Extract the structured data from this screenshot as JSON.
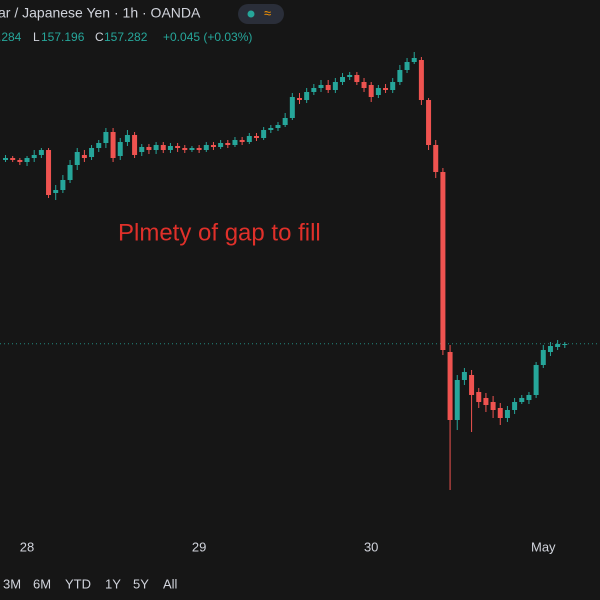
{
  "header": {
    "title": "ar / Japanese Yen · 1h · OANDA",
    "high": ".284",
    "low_label": "L",
    "low": 157.196,
    "close_label": "C",
    "close": 157.282,
    "change": "+0.045 (+0.03%)"
  },
  "chart_data": {
    "type": "candlestick",
    "annotation": "Plmety of gap to fill",
    "up_color": "#26a69a",
    "down_color": "#ef5350",
    "x": [
      -3,
      -2,
      -1,
      0,
      1,
      2,
      3,
      4,
      5,
      6,
      7,
      8,
      9,
      10,
      11,
      12,
      13,
      14,
      15,
      16,
      17,
      18,
      19,
      20,
      21,
      22,
      23,
      24,
      25,
      26,
      27,
      28,
      29,
      30,
      31,
      32,
      33,
      34,
      35,
      36,
      37,
      38,
      39,
      40,
      41,
      42,
      43,
      44,
      45,
      46,
      47,
      48,
      49,
      50,
      51,
      52,
      53,
      54,
      55,
      56,
      57,
      58,
      59,
      60,
      61,
      62,
      63,
      64,
      65,
      66,
      67,
      68,
      69,
      70,
      71,
      72,
      73,
      74,
      75
    ],
    "open": [
      159.12,
      159.14,
      159.12,
      159.1,
      159.14,
      159.17,
      159.22,
      158.79,
      158.82,
      158.92,
      159.07,
      159.17,
      159.15,
      159.24,
      159.29,
      159.4,
      159.16,
      159.3,
      159.37,
      159.2,
      159.25,
      159.22,
      159.27,
      159.22,
      159.26,
      159.24,
      159.22,
      159.24,
      159.22,
      159.27,
      159.25,
      159.29,
      159.27,
      159.32,
      159.3,
      159.36,
      159.34,
      159.42,
      159.44,
      159.47,
      159.54,
      159.74,
      159.72,
      159.8,
      159.84,
      159.87,
      159.82,
      159.9,
      159.95,
      159.97,
      159.9,
      159.87,
      159.77,
      159.84,
      159.82,
      159.9,
      160.02,
      160.1,
      160.12,
      159.72,
      159.27,
      159.0,
      157.2,
      156.52,
      156.92,
      156.97,
      156.8,
      156.74,
      156.7,
      156.64,
      156.54,
      156.62,
      156.7,
      156.72,
      156.77,
      157.07,
      157.2,
      157.25,
      157.27
    ],
    "high": [
      159.17,
      159.16,
      159.14,
      159.16,
      159.22,
      159.24,
      159.24,
      158.87,
      158.97,
      159.12,
      159.24,
      159.22,
      159.27,
      159.32,
      159.44,
      159.44,
      159.34,
      159.42,
      159.4,
      159.28,
      159.28,
      159.3,
      159.3,
      159.29,
      159.29,
      159.27,
      159.26,
      159.27,
      159.3,
      159.3,
      159.32,
      159.32,
      159.35,
      159.35,
      159.39,
      159.39,
      159.45,
      159.47,
      159.5,
      159.59,
      159.79,
      159.79,
      159.84,
      159.88,
      159.92,
      159.92,
      159.94,
      159.99,
      160.0,
      160.0,
      159.94,
      159.9,
      159.87,
      159.88,
      159.94,
      160.07,
      160.14,
      160.2,
      160.15,
      159.74,
      159.32,
      159.04,
      157.27,
      156.97,
      157.04,
      157.02,
      156.84,
      156.79,
      156.76,
      156.69,
      156.66,
      156.74,
      156.77,
      156.8,
      157.1,
      157.27,
      157.3,
      157.32,
      157.3
    ],
    "low": [
      159.1,
      159.1,
      159.07,
      159.06,
      159.1,
      159.14,
      158.74,
      158.72,
      158.79,
      158.89,
      159.02,
      159.1,
      159.12,
      159.2,
      159.24,
      159.1,
      159.12,
      159.26,
      159.14,
      159.16,
      159.18,
      159.18,
      159.19,
      159.19,
      159.2,
      159.19,
      159.2,
      159.19,
      159.2,
      159.22,
      159.23,
      159.24,
      159.25,
      159.27,
      159.28,
      159.31,
      159.32,
      159.39,
      159.41,
      159.45,
      159.52,
      159.68,
      159.69,
      159.77,
      159.8,
      159.79,
      159.79,
      159.87,
      159.92,
      159.87,
      159.8,
      159.7,
      159.74,
      159.79,
      159.79,
      159.87,
      159.99,
      160.08,
      159.67,
      159.22,
      158.94,
      157.17,
      155.82,
      156.42,
      156.87,
      156.4,
      156.64,
      156.6,
      156.54,
      156.47,
      156.5,
      156.58,
      156.68,
      156.68,
      156.74,
      157.04,
      157.16,
      157.22,
      157.24
    ],
    "close": [
      159.14,
      159.12,
      159.1,
      159.14,
      159.17,
      159.22,
      158.77,
      158.82,
      158.92,
      159.07,
      159.2,
      159.14,
      159.24,
      159.29,
      159.4,
      159.14,
      159.3,
      159.37,
      159.17,
      159.25,
      159.22,
      159.27,
      159.22,
      159.26,
      159.24,
      159.22,
      159.24,
      159.22,
      159.27,
      159.25,
      159.29,
      159.27,
      159.32,
      159.3,
      159.36,
      159.34,
      159.42,
      159.44,
      159.47,
      159.54,
      159.75,
      159.72,
      159.8,
      159.84,
      159.87,
      159.82,
      159.9,
      159.95,
      159.97,
      159.9,
      159.84,
      159.75,
      159.84,
      159.82,
      159.9,
      160.02,
      160.1,
      160.14,
      159.72,
      159.27,
      159.0,
      157.22,
      156.52,
      156.92,
      157.0,
      156.77,
      156.7,
      156.67,
      156.62,
      156.54,
      156.62,
      156.7,
      156.74,
      156.77,
      157.07,
      157.22,
      157.26,
      157.28,
      157.28
    ],
    "xlim": [
      -3.77,
      79.91
    ],
    "ylim": [
      155.42,
      160.72
    ],
    "xticks": [
      {
        "value": 0,
        "label": "28"
      },
      {
        "value": 24,
        "label": "29"
      },
      {
        "value": 48,
        "label": "30"
      },
      {
        "value": 72,
        "label": "May"
      }
    ]
  },
  "range_buttons": [
    "3M",
    "6M",
    "YTD",
    "1Y",
    "5Y",
    "All"
  ]
}
